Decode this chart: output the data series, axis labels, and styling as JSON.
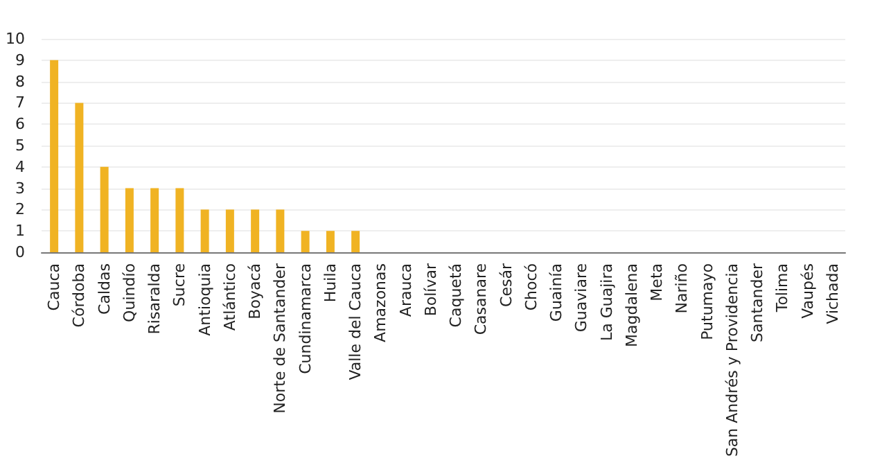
{
  "chart_data": {
    "type": "bar",
    "categories": [
      "Cauca",
      "Córdoba",
      "Caldas",
      "Quindío",
      "Risaralda",
      "Sucre",
      "Antioquia",
      "Atlántico",
      "Boyacá",
      "Norte de Santander",
      "Cundinamarca",
      "Huila",
      "Valle del Cauca",
      "Amazonas",
      "Arauca",
      "Bolívar",
      "Caquetá",
      "Casanare",
      "Cesár",
      "Chocó",
      "Guainía",
      "Guaviare",
      "La Guajira",
      "Magdalena",
      "Meta",
      "Nariño",
      "Putumayo",
      "San Andrés y Providencia",
      "Santander",
      "Tolima",
      "Vaupés",
      "Vichada"
    ],
    "values": [
      9,
      7,
      4,
      3,
      3,
      3,
      2,
      2,
      2,
      2,
      1,
      1,
      1,
      0,
      0,
      0,
      0,
      0,
      0,
      0,
      0,
      0,
      0,
      0,
      0,
      0,
      0,
      0,
      0,
      0,
      0,
      0
    ],
    "color": "#f0b323",
    "ylim": [
      0,
      10
    ],
    "yticks": [
      0,
      1,
      2,
      3,
      4,
      5,
      6,
      7,
      8,
      9,
      10
    ],
    "grid": "y"
  }
}
